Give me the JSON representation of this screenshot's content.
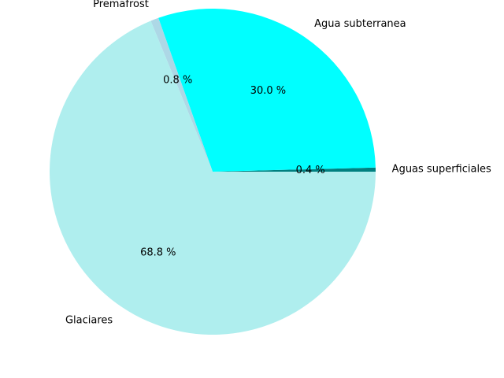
{
  "chart_data": {
    "type": "pie",
    "labels": [
      "Aguas superficiales",
      "Agua subterranea",
      "Premafrost",
      "Glaciares"
    ],
    "values": [
      0.4,
      30.0,
      0.8,
      68.8
    ],
    "pct_labels": [
      "0.4 %",
      "30.0 %",
      "0.8 %",
      "68.8 %"
    ],
    "colors": [
      "#008080",
      "#00ffff",
      "#add8e6",
      "#afeeee"
    ],
    "start_angle_deg": 0,
    "direction": "counterclockwise-from-east, drawn clockwise on screen",
    "legend": "none"
  }
}
